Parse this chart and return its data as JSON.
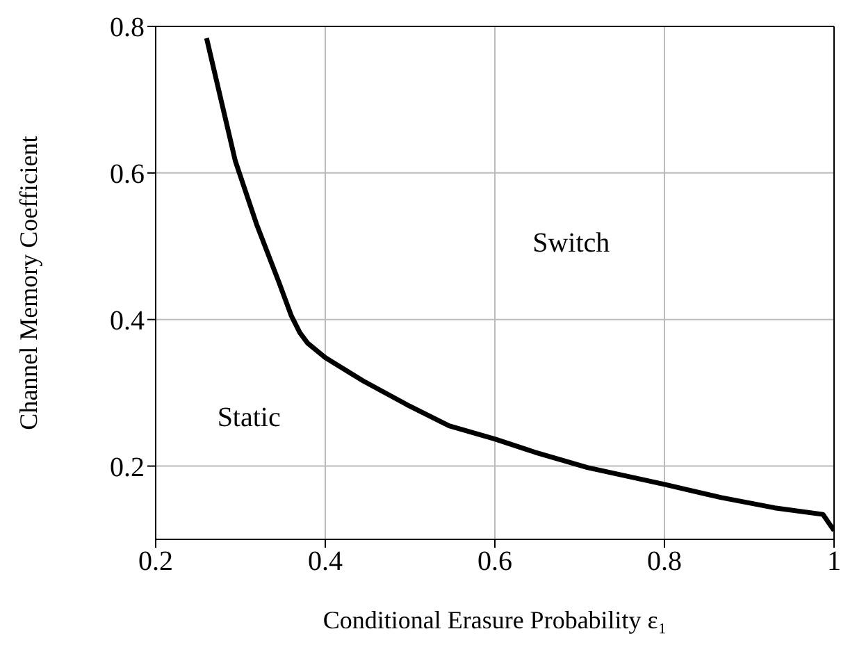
{
  "chart_data": {
    "type": "line",
    "xlabel": "Conditional Erasure Probability ε₁",
    "ylabel": "Channel Memory Coefficient",
    "x": [
      0.26,
      0.294,
      0.319,
      0.345,
      0.36,
      0.37,
      0.379,
      0.4,
      0.445,
      0.496,
      0.546,
      0.6,
      0.647,
      0.709,
      0.8,
      0.867,
      0.93,
      0.987,
      1.0
    ],
    "series": [
      {
        "color": "#000000",
        "values": [
          0.784,
          0.616,
          0.53,
          0.452,
          0.405,
          0.382,
          0.368,
          0.348,
          0.316,
          0.284,
          0.255,
          0.237,
          0.219,
          0.198,
          0.175,
          0.157,
          0.143,
          0.134,
          0.112
        ]
      }
    ],
    "xlim": [
      0.2,
      1
    ],
    "xticks": [
      0.2,
      0.4,
      0.6,
      0.8,
      1
    ],
    "ylim": [
      0.1,
      0.8
    ],
    "yticks": [
      0.2,
      0.4,
      0.6,
      0.8
    ],
    "grid": true,
    "legend": false,
    "marker": "none",
    "line_style": "solid",
    "annotations": [
      "Switch",
      "Static"
    ]
  }
}
